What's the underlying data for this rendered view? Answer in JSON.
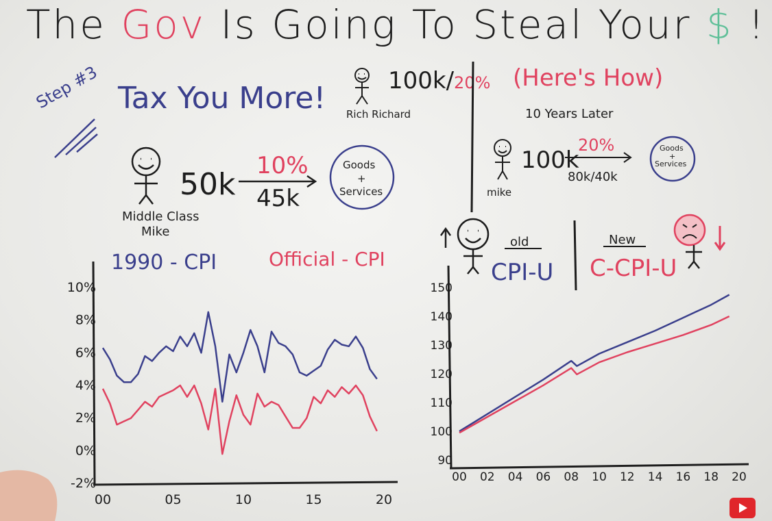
{
  "title": {
    "part1": "The",
    "part2": "Gov",
    "part3": "Is Going To Steal Your",
    "part4": "$",
    "part5": "!"
  },
  "step_label": "Step #3",
  "left_panel": {
    "heading": "Tax You More!",
    "rich_label": "Rich Richard",
    "rich_value": "100k/",
    "rich_rate": "20%",
    "mike_label_1": "Middle Class",
    "mike_label_2": "Mike",
    "income": "50k",
    "rate": "10%",
    "after_tax": "45k",
    "goods_1": "Goods",
    "goods_2": "+",
    "goods_3": "Services"
  },
  "right_panel": {
    "heading": "(Here's How)",
    "subheading": "10 Years Later",
    "mike_label": "mike",
    "income": "100k",
    "rate": "20%",
    "after_tax": "80k/40k",
    "goods_1": "Goods",
    "goods_2": "+",
    "goods_3": "Services",
    "old_label": "old",
    "old_series": "CPI-U",
    "new_label": "New",
    "new_series": "C-CPI-U"
  },
  "chart_data": [
    {
      "type": "line",
      "title": "",
      "x": [
        0,
        0.5,
        1,
        1.5,
        2,
        2.5,
        3,
        3.5,
        4,
        4.5,
        5,
        5.5,
        6,
        6.5,
        7,
        7.5,
        8,
        8.5,
        9,
        9.5,
        10,
        10.5,
        11,
        11.5,
        12,
        12.5,
        13,
        13.5,
        14,
        14.5,
        15,
        15.5,
        16,
        16.5,
        17,
        17.5,
        18,
        18.5,
        19,
        19.5
      ],
      "x_ticks": [
        "00",
        "05",
        "10",
        "15",
        "20"
      ],
      "y_ticks": [
        "10%",
        "8%",
        "6%",
        "4%",
        "2%",
        "0%",
        "-2%"
      ],
      "ylim": [
        -2,
        10
      ],
      "series": [
        {
          "name": "1990 - CPI",
          "color": "#3a3f8c",
          "values": [
            6.3,
            5.6,
            4.6,
            4.2,
            4.2,
            4.7,
            5.8,
            5.5,
            6.0,
            6.4,
            6.1,
            7.0,
            6.4,
            7.2,
            6.0,
            8.5,
            6.4,
            3.0,
            5.9,
            4.8,
            6.0,
            7.4,
            6.4,
            4.8,
            7.3,
            6.6,
            6.4,
            5.9,
            4.8,
            4.6,
            4.9,
            5.2,
            6.2,
            6.8,
            6.5,
            6.4,
            7.0,
            6.3,
            5.0,
            4.4
          ]
        },
        {
          "name": "Official - CPI",
          "color": "#e0425f",
          "values": [
            3.8,
            2.9,
            1.6,
            1.8,
            2.0,
            2.5,
            3.0,
            2.7,
            3.3,
            3.5,
            3.7,
            4.0,
            3.3,
            4.0,
            2.9,
            1.3,
            3.8,
            -0.2,
            1.8,
            3.4,
            2.2,
            1.6,
            3.5,
            2.7,
            3.0,
            2.8,
            2.1,
            1.4,
            1.4,
            2.0,
            3.3,
            2.9,
            3.7,
            3.3,
            3.9,
            3.5,
            4.0,
            3.4,
            2.1,
            1.2
          ]
        }
      ]
    },
    {
      "type": "line",
      "title": "",
      "x": [
        0,
        2,
        4,
        6,
        8,
        8.4,
        10,
        12,
        14,
        16,
        18,
        19.3
      ],
      "x_ticks": [
        "00",
        "02",
        "04",
        "06",
        "08",
        "10",
        "12",
        "14",
        "16",
        "18",
        "20"
      ],
      "y_ticks": [
        "150",
        "140",
        "130",
        "120",
        "110",
        "100",
        "90"
      ],
      "ylim": [
        90,
        150
      ],
      "series": [
        {
          "name": "CPI-U",
          "color": "#3a3f8c",
          "values": [
            100,
            106,
            112,
            118,
            124.5,
            122.7,
            127,
            131,
            135,
            139.5,
            144,
            147.5
          ]
        },
        {
          "name": "C-CPI-U",
          "color": "#e0425f",
          "values": [
            99.5,
            105,
            110.5,
            116,
            122,
            119.8,
            124,
            127.5,
            130.5,
            133.5,
            137,
            140
          ]
        }
      ]
    }
  ]
}
